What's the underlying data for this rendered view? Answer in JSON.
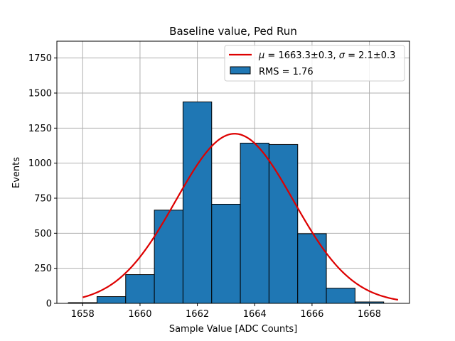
{
  "chart_data": {
    "type": "bar",
    "title": "Baseline value, Ped Run",
    "xlabel": "Sample Value [ADC Counts]",
    "ylabel": "Events",
    "xlim": [
      1657.1,
      1669.4
    ],
    "ylim": [
      0,
      1870
    ],
    "xticks": [
      1658,
      1660,
      1662,
      1664,
      1666,
      1668
    ],
    "yticks": [
      0,
      250,
      500,
      750,
      1000,
      1250,
      1500,
      1750
    ],
    "grid": true,
    "legend_position": "top-right",
    "histogram": {
      "name": "RMS = 1.76",
      "color": "#1f77b4",
      "bin_edges": [
        1657.5,
        1658.5,
        1659.5,
        1660.5,
        1661.5,
        1662.5,
        1663.5,
        1664.5,
        1665.5,
        1666.5,
        1667.5,
        1668.5
      ],
      "counts": [
        5,
        48,
        205,
        665,
        1437,
        707,
        1143,
        1133,
        497,
        108,
        10
      ]
    },
    "fit": {
      "name": "$\\mu = 1663.3\\pm0.3$, $\\sigma = 2.1\\pm0.3$",
      "color": "#dd0000",
      "mu": 1663.3,
      "sigma": 2.05,
      "amplitude": 1210,
      "x_range": [
        1658,
        1669
      ]
    }
  },
  "legend": {
    "fit_mu_symbol": "μ",
    "fit_mu_text": " = 1663.3±0.3, ",
    "fit_sigma_symbol": "σ",
    "fit_sigma_text": " = 2.1±0.3",
    "hist_label": "RMS = 1.76"
  }
}
